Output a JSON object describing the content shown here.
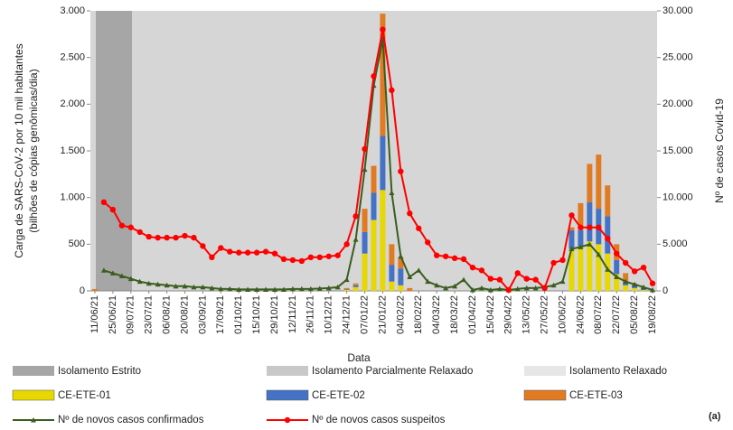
{
  "chart_data": {
    "type": "bar",
    "x_label": "Data",
    "y_label": [
      "Carga de SARS-CoV-2 por 10 mil habitantes",
      "(bilhões de cópias genômicas/dia)"
    ],
    "y2_label": "Nº de casos Covid-19",
    "panel_label": "(a)",
    "categories": [
      "11/06/21",
      null,
      "25/06/21",
      null,
      "09/07/21",
      null,
      "23/07/21",
      null,
      "06/08/21",
      null,
      "20/08/21",
      null,
      "03/09/21",
      null,
      "17/09/21",
      null,
      "01/10/21",
      null,
      "15/10/21",
      null,
      "29/10/21",
      null,
      "12/11/21",
      null,
      "26/11/21",
      null,
      "10/12/21",
      null,
      "24/12/21",
      null,
      "07/01/22",
      null,
      "21/01/22",
      null,
      "04/02/22",
      null,
      "18/02/22",
      null,
      "04/03/22",
      null,
      "18/03/22",
      null,
      "01/04/22",
      null,
      "15/04/22",
      null,
      "29/04/22",
      null,
      "13/05/22",
      null,
      "27/05/22",
      null,
      "10/06/22",
      null,
      "24/06/22",
      null,
      "08/07/22",
      null,
      "22/07/22",
      null,
      "05/08/22",
      null,
      "19/08/22"
    ],
    "ylim": [
      0,
      3000
    ],
    "yticks": [
      0,
      500,
      {
        "value": 1000,
        "label": "1.000"
      },
      {
        "value": 1500,
        "label": "1.500"
      },
      {
        "value": 2000,
        "label": "2.000"
      },
      {
        "value": 2500,
        "label": "2.500"
      },
      {
        "value": 3000,
        "label": "3.000"
      }
    ],
    "y2lim": [
      0,
      30000
    ],
    "y2ticks": [
      0,
      {
        "value": 5000,
        "label": "5.000"
      },
      {
        "value": 10000,
        "label": "10.000"
      },
      {
        "value": 15000,
        "label": "15.000"
      },
      {
        "value": 20000,
        "label": "20.000"
      },
      {
        "value": 25000,
        "label": "25.000"
      },
      {
        "value": 30000,
        "label": "30.000"
      }
    ],
    "periods": [
      {
        "name": "Isolamento Estrito",
        "color": "#a6a6a6"
      },
      {
        "name": "Isolamento Parcialmente Relaxado",
        "color": "#c8c8c8"
      },
      {
        "name": "Isolamento Relaxado",
        "color": "#e7e6e6"
      }
    ],
    "series": [
      {
        "name": "CE-ETE-01",
        "type": "bar",
        "color": "#e6d800",
        "values": [
          null,
          null,
          null,
          null,
          null,
          null,
          null,
          null,
          null,
          null,
          null,
          null,
          null,
          null,
          null,
          null,
          null,
          null,
          null,
          null,
          null,
          null,
          null,
          null,
          null,
          null,
          null,
          null,
          10,
          40,
          400,
          760,
          1080,
          100,
          60,
          null,
          null,
          null,
          null,
          null,
          null,
          null,
          null,
          null,
          null,
          null,
          null,
          null,
          null,
          null,
          null,
          null,
          null,
          450,
          480,
          530,
          500,
          400,
          180,
          60,
          30,
          10,
          null
        ]
      },
      {
        "name": "CE-ETE-02",
        "type": "bar",
        "color": "#4472c4",
        "values": [
          null,
          null,
          null,
          null,
          null,
          null,
          null,
          null,
          null,
          null,
          null,
          null,
          null,
          null,
          null,
          null,
          null,
          null,
          null,
          null,
          null,
          null,
          null,
          null,
          null,
          null,
          null,
          null,
          5,
          20,
          230,
          290,
          580,
          180,
          180,
          null,
          null,
          null,
          null,
          null,
          null,
          null,
          null,
          null,
          null,
          null,
          null,
          null,
          null,
          null,
          null,
          null,
          null,
          200,
          170,
          420,
          380,
          400,
          150,
          40,
          30,
          20,
          null
        ]
      },
      {
        "name": "CE-ETE-03",
        "type": "bar",
        "color": "#e07b24",
        "values": [
          20,
          null,
          null,
          null,
          null,
          null,
          null,
          null,
          null,
          null,
          null,
          null,
          null,
          null,
          null,
          null,
          null,
          null,
          null,
          null,
          null,
          null,
          null,
          null,
          null,
          null,
          null,
          null,
          15,
          20,
          250,
          290,
          1310,
          220,
          120,
          30,
          null,
          null,
          null,
          null,
          null,
          null,
          null,
          null,
          null,
          null,
          null,
          null,
          null,
          null,
          null,
          null,
          null,
          30,
          290,
          410,
          580,
          330,
          170,
          90,
          20,
          10,
          null
        ]
      },
      {
        "name": "Nº de novos casos confirmados",
        "type": "line",
        "axis": "y2",
        "color": "#3a5e1e",
        "values": [
          null,
          2200,
          1900,
          1600,
          1300,
          1000,
          800,
          700,
          600,
          500,
          500,
          400,
          400,
          300,
          200,
          200,
          150,
          150,
          150,
          150,
          150,
          150,
          200,
          200,
          200,
          250,
          300,
          400,
          1200,
          5500,
          13000,
          22000,
          27000,
          10500,
          3700,
          1500,
          2200,
          1000,
          600,
          300,
          500,
          1200,
          100,
          300,
          100,
          200,
          100,
          200,
          300,
          300,
          400,
          600,
          1000,
          4500,
          4700,
          5000,
          3900,
          2300,
          1500,
          1000,
          700,
          400,
          100
        ]
      },
      {
        "name": "Nº de novos casos suspeitos",
        "type": "line",
        "axis": "y2",
        "color": "#ff0000",
        "values": [
          null,
          9500,
          8700,
          7000,
          6800,
          6300,
          5800,
          5700,
          5700,
          5700,
          5900,
          5700,
          4800,
          3600,
          4600,
          4200,
          4100,
          4100,
          4100,
          4200,
          4000,
          3400,
          3300,
          3200,
          3600,
          3600,
          3700,
          3800,
          5000,
          8000,
          15200,
          23000,
          28000,
          21500,
          12800,
          8300,
          6700,
          5200,
          3800,
          3700,
          3500,
          3400,
          2500,
          2200,
          1300,
          1200,
          100,
          1900,
          1300,
          1200,
          300,
          3000,
          3300,
          8100,
          6800,
          6800,
          6800,
          5600,
          4000,
          3000,
          2100,
          2500,
          800
        ]
      }
    ]
  }
}
